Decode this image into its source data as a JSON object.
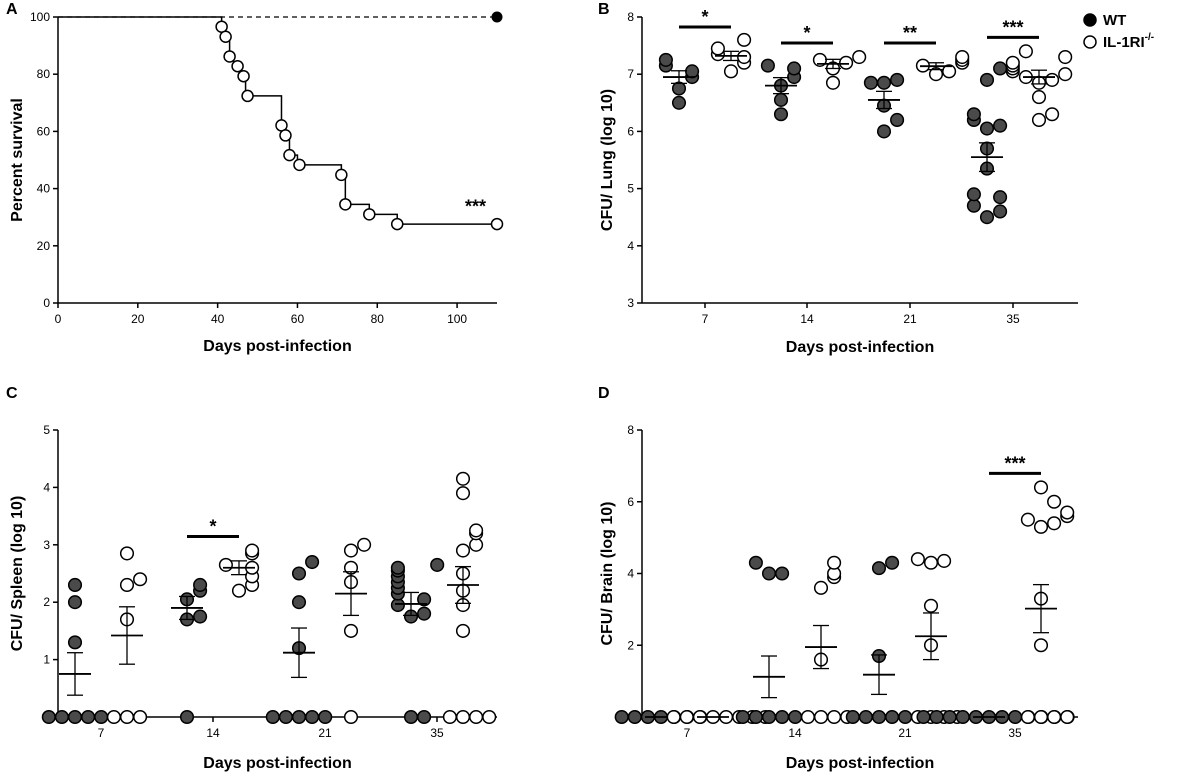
{
  "colors": {
    "wt_fill": "#4a4a4a",
    "ko_fill": "#ffffff",
    "stroke": "#000000"
  },
  "legend": [
    {
      "label": "WT",
      "marker": "filled-circle"
    },
    {
      "label": "IL-1RI",
      "superscript": "-/-",
      "marker": "open-circle"
    }
  ],
  "chart_data": [
    {
      "panel": "A",
      "type": "survival-curve",
      "xlabel": "Days post-infection",
      "ylabel": "Percent survival",
      "xlim": [
        0,
        110
      ],
      "ylim": [
        0,
        100
      ],
      "xticks": [
        "0",
        "20",
        "40",
        "60",
        "80",
        "100"
      ],
      "yticks": [
        "0",
        "20",
        "40",
        "60",
        "80",
        "100"
      ],
      "series": [
        {
          "name": "WT",
          "style": "dashed",
          "x": [
            0,
            110
          ],
          "y": [
            100,
            100
          ],
          "markers": [
            {
              "x": 110,
              "y": 100
            }
          ]
        },
        {
          "name": "IL-1RI-/-",
          "style": "solid-step",
          "x": [
            0,
            41,
            42,
            43,
            44,
            46,
            47,
            48,
            49,
            56,
            57,
            58,
            60,
            61,
            71,
            72,
            78,
            85,
            110
          ],
          "y": [
            100,
            96.6,
            93.1,
            86.2,
            82.8,
            79.3,
            72.4,
            72.4,
            72.4,
            62.1,
            58.6,
            51.7,
            48.3,
            48.3,
            44.8,
            34.5,
            31.0,
            27.6,
            27.6
          ],
          "markers": [
            {
              "x": 41,
              "y": 96.6
            },
            {
              "x": 42,
              "y": 93.1
            },
            {
              "x": 43,
              "y": 86.2
            },
            {
              "x": 45,
              "y": 82.8
            },
            {
              "x": 46.5,
              "y": 79.3
            },
            {
              "x": 47.5,
              "y": 72.4
            },
            {
              "x": 56,
              "y": 62.1
            },
            {
              "x": 57,
              "y": 58.6
            },
            {
              "x": 58,
              "y": 51.7
            },
            {
              "x": 60.5,
              "y": 48.3
            },
            {
              "x": 71,
              "y": 44.8
            },
            {
              "x": 72,
              "y": 34.5
            },
            {
              "x": 78,
              "y": 31.0
            },
            {
              "x": 85,
              "y": 27.6
            },
            {
              "x": 110,
              "y": 27.6
            }
          ]
        }
      ],
      "annotations": [
        {
          "text": "***",
          "x": 106,
          "y": 33
        }
      ]
    },
    {
      "panel": "B",
      "type": "scatter",
      "xlabel": "Days post-infection",
      "ylabel": "CFU/ Lung (log 10)",
      "ylim": [
        3,
        8
      ],
      "yticks": [
        "3",
        "4",
        "5",
        "6",
        "7",
        "8"
      ],
      "categories": [
        "7",
        "14",
        "21",
        "35"
      ],
      "groups": [
        {
          "day": "7",
          "wt": {
            "points": [
              6.5,
              6.75,
              6.95,
              7.05,
              7.15,
              7.25
            ],
            "mean": 6.95,
            "sem": 0.11
          },
          "ko": {
            "points": [
              7.05,
              7.2,
              7.3,
              7.35,
              7.45,
              7.6
            ],
            "mean": 7.32,
            "sem": 0.08
          },
          "sig": "*"
        },
        {
          "day": "14",
          "wt": {
            "points": [
              6.3,
              6.55,
              6.8,
              6.95,
              7.1,
              7.15
            ],
            "mean": 6.8,
            "sem": 0.14
          },
          "ko": {
            "points": [
              6.85,
              7.1,
              7.2,
              7.25,
              7.3
            ],
            "mean": 7.18,
            "sem": 0.08
          },
          "sig": "*"
        },
        {
          "day": "21",
          "wt": {
            "points": [
              6.0,
              6.2,
              6.45,
              6.85,
              6.9,
              6.85
            ],
            "mean": 6.55,
            "sem": 0.15
          },
          "ko": {
            "points": [
              7.0,
              7.05,
              7.15,
              7.2,
              7.25,
              7.3
            ],
            "mean": 7.14,
            "sem": 0.06
          },
          "sig": "**"
        },
        {
          "day": "35",
          "wt": {
            "points": [
              4.5,
              4.6,
              4.7,
              4.85,
              4.9,
              5.35,
              5.7,
              6.05,
              6.1,
              6.2,
              6.3,
              6.9,
              7.1
            ],
            "mean": 5.55,
            "sem": 0.25
          },
          "ko": {
            "points": [
              6.2,
              6.3,
              6.6,
              6.85,
              6.9,
              6.95,
              7.0,
              7.05,
              7.1,
              7.15,
              7.2,
              7.3,
              7.4
            ],
            "mean": 6.95,
            "sem": 0.12
          },
          "sig": "***"
        }
      ]
    },
    {
      "panel": "C",
      "type": "scatter",
      "xlabel": "Days post-infection",
      "ylabel": "CFU/ Spleen (log 10)",
      "ylim": [
        0,
        5
      ],
      "yticks": [
        "0",
        "1",
        "2",
        "3",
        "4",
        "5"
      ],
      "categories": [
        "7",
        "14",
        "21",
        "35"
      ],
      "groups": [
        {
          "day": "7",
          "wt": {
            "points": [
              0,
              0,
              0,
              0,
              0,
              1.3,
              2.0,
              2.3
            ],
            "mean": 0.75,
            "sem": 0.37
          },
          "ko": {
            "points": [
              0,
              0,
              0,
              1.7,
              2.3,
              2.4,
              2.85
            ],
            "mean": 1.42,
            "sem": 0.5
          },
          "sig": ""
        },
        {
          "day": "14",
          "wt": {
            "points": [
              0,
              1.7,
              1.75,
              2.05,
              2.2,
              2.3
            ],
            "mean": 1.9,
            "sem": 0.2
          },
          "ko": {
            "points": [
              2.2,
              2.3,
              2.45,
              2.6,
              2.65,
              2.85,
              2.9
            ],
            "mean": 2.6,
            "sem": 0.12
          },
          "sig": "*"
        },
        {
          "day": "21",
          "wt": {
            "points": [
              0,
              0,
              0,
              0,
              0,
              1.2,
              2.0,
              2.5,
              2.7
            ],
            "mean": 1.12,
            "sem": 0.43
          },
          "ko": {
            "points": [
              0,
              1.5,
              2.35,
              2.6,
              2.9,
              3.0
            ],
            "mean": 2.15,
            "sem": 0.38
          },
          "sig": ""
        },
        {
          "day": "35",
          "wt": {
            "points": [
              0,
              0,
              1.75,
              1.8,
              1.95,
              2.05,
              2.15,
              2.25,
              2.35,
              2.45,
              2.55,
              2.6,
              2.65
            ],
            "mean": 1.97,
            "sem": 0.2
          },
          "ko": {
            "points": [
              0,
              0,
              0,
              0,
              1.5,
              1.95,
              2.2,
              2.5,
              2.9,
              3.0,
              3.2,
              3.25,
              3.9,
              4.15
            ],
            "mean": 2.3,
            "sem": 0.32
          },
          "sig": ""
        }
      ]
    },
    {
      "panel": "D",
      "type": "scatter",
      "xlabel": "Days post-infection",
      "ylabel": "CFU/ Brain (log 10)",
      "ylim": [
        0,
        8
      ],
      "yticks": [
        "0",
        "2",
        "4",
        "6",
        "8"
      ],
      "categories": [
        "7",
        "14",
        "21",
        "35"
      ],
      "groups": [
        {
          "day": "7",
          "wt": {
            "points": [
              0,
              0,
              0,
              0,
              0,
              0,
              0
            ],
            "mean": 0,
            "sem": 0
          },
          "ko": {
            "points": [
              0,
              0,
              0,
              0,
              0,
              0,
              0,
              0
            ],
            "mean": 0,
            "sem": 0
          },
          "sig": ""
        },
        {
          "day": "14",
          "wt": {
            "points": [
              0,
              0,
              0,
              0,
              0,
              4.0,
              4.0,
              4.3
            ],
            "mean": 1.12,
            "sem": 0.58
          },
          "ko": {
            "points": [
              0,
              0,
              0,
              0,
              1.6,
              3.6,
              3.9,
              4.0,
              4.3
            ],
            "mean": 1.95,
            "sem": 0.6
          },
          "sig": ""
        },
        {
          "day": "21",
          "wt": {
            "points": [
              0,
              0,
              0,
              0,
              0,
              1.7,
              4.15,
              4.3
            ],
            "mean": 1.18,
            "sem": 0.55
          },
          "ko": {
            "points": [
              0,
              0,
              0,
              0,
              2.0,
              3.1,
              4.3,
              4.35,
              4.4
            ],
            "mean": 2.25,
            "sem": 0.65
          },
          "sig": ""
        },
        {
          "day": "35",
          "wt": {
            "points": [
              0,
              0,
              0,
              0,
              0,
              0,
              0,
              0,
              0,
              0,
              0,
              0
            ],
            "mean": 0,
            "sem": 0
          },
          "ko": {
            "points": [
              0,
              0,
              0,
              0,
              2.0,
              3.3,
              5.3,
              5.4,
              5.5,
              5.6,
              5.7,
              6.0,
              6.4
            ],
            "mean": 3.02,
            "sem": 0.67
          },
          "sig": "***"
        }
      ]
    }
  ]
}
